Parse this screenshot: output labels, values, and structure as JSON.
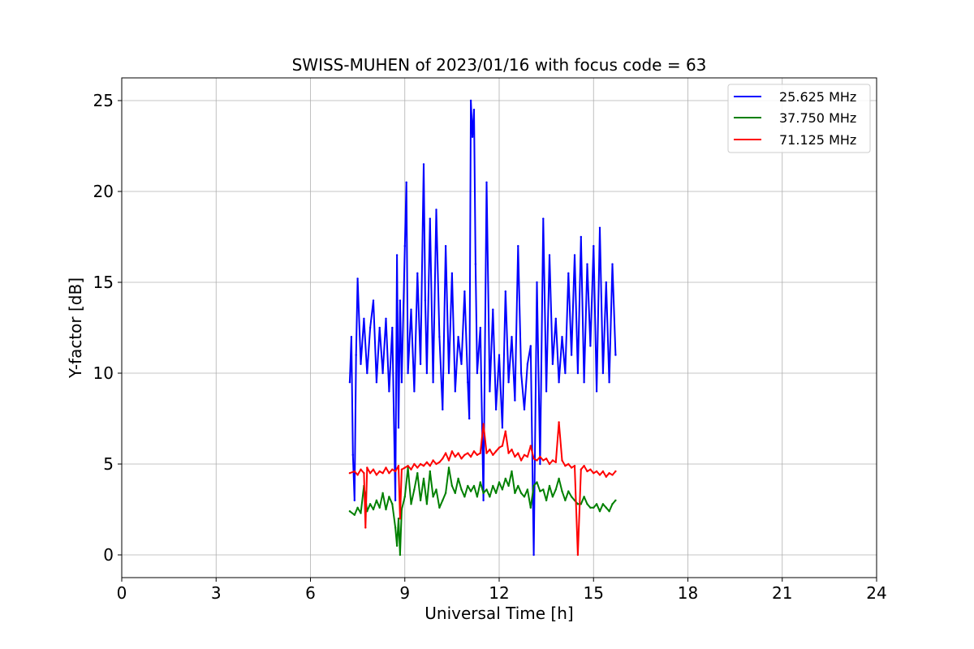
{
  "chart_data": {
    "type": "line",
    "title": "SWISS-MUHEN of 2023/01/16 with focus code = 63",
    "xlabel": "Universal Time [h]",
    "ylabel": "Y-factor [dB]",
    "xlim": [
      0,
      24
    ],
    "ylim": [
      -1.25,
      26.25
    ],
    "xticks": [
      0,
      3,
      6,
      9,
      12,
      15,
      18,
      21,
      24
    ],
    "yticks": [
      0,
      5,
      10,
      15,
      20,
      25
    ],
    "grid": true,
    "legend_position": "top-right",
    "series": [
      {
        "name": "25.625 MHz",
        "color": "#0000ff",
        "x": [
          7.25,
          7.3,
          7.35,
          7.4,
          7.45,
          7.5,
          7.6,
          7.7,
          7.8,
          7.9,
          8.0,
          8.1,
          8.2,
          8.3,
          8.4,
          8.5,
          8.6,
          8.7,
          8.75,
          8.8,
          8.85,
          8.9,
          9.0,
          9.05,
          9.1,
          9.2,
          9.3,
          9.4,
          9.5,
          9.6,
          9.65,
          9.7,
          9.8,
          9.9,
          10.0,
          10.1,
          10.2,
          10.3,
          10.4,
          10.5,
          10.6,
          10.7,
          10.8,
          10.9,
          11.0,
          11.05,
          11.1,
          11.15,
          11.2,
          11.25,
          11.3,
          11.4,
          11.5,
          11.6,
          11.7,
          11.8,
          11.9,
          12.0,
          12.1,
          12.2,
          12.3,
          12.4,
          12.5,
          12.6,
          12.7,
          12.8,
          12.9,
          13.0,
          13.1,
          13.2,
          13.3,
          13.4,
          13.5,
          13.6,
          13.7,
          13.8,
          13.9,
          14.0,
          14.1,
          14.2,
          14.3,
          14.4,
          14.5,
          14.6,
          14.7,
          14.8,
          14.9,
          15.0,
          15.1,
          15.2,
          15.3,
          15.4,
          15.5,
          15.6,
          15.7
        ],
        "values": [
          9.5,
          12.0,
          5.5,
          3.0,
          11.0,
          15.2,
          10.5,
          13.0,
          10.0,
          12.5,
          14.0,
          9.5,
          12.5,
          10.0,
          13.0,
          9.0,
          12.5,
          3.0,
          16.5,
          7.0,
          14.0,
          9.5,
          17.0,
          20.5,
          10.0,
          13.5,
          9.0,
          15.5,
          10.5,
          21.5,
          14.0,
          10.0,
          18.5,
          9.5,
          19.0,
          12.0,
          8.0,
          17.0,
          10.0,
          15.5,
          9.0,
          12.0,
          10.5,
          14.5,
          9.5,
          7.5,
          25.0,
          23.0,
          24.5,
          16.0,
          10.0,
          12.5,
          3.0,
          20.5,
          9.0,
          13.5,
          8.0,
          11.0,
          7.0,
          14.5,
          9.5,
          12.0,
          8.5,
          17.0,
          10.0,
          8.0,
          10.5,
          11.5,
          0.0,
          15.0,
          5.0,
          18.5,
          9.0,
          16.5,
          10.5,
          13.0,
          9.5,
          12.0,
          10.0,
          15.5,
          11.0,
          16.5,
          10.0,
          17.5,
          9.5,
          16.0,
          11.5,
          17.0,
          9.0,
          18.0,
          10.0,
          15.0,
          9.5,
          16.0,
          11.0
        ]
      },
      {
        "name": "37.750 MHz",
        "color": "#008000",
        "x": [
          7.25,
          7.4,
          7.5,
          7.6,
          7.7,
          7.8,
          7.9,
          8.0,
          8.1,
          8.2,
          8.3,
          8.4,
          8.5,
          8.6,
          8.7,
          8.75,
          8.8,
          8.85,
          8.9,
          9.0,
          9.1,
          9.2,
          9.3,
          9.4,
          9.5,
          9.6,
          9.7,
          9.8,
          9.9,
          10.0,
          10.1,
          10.2,
          10.3,
          10.4,
          10.5,
          10.6,
          10.7,
          10.8,
          10.9,
          11.0,
          11.1,
          11.2,
          11.3,
          11.4,
          11.5,
          11.6,
          11.7,
          11.8,
          11.9,
          12.0,
          12.1,
          12.2,
          12.3,
          12.4,
          12.5,
          12.6,
          12.7,
          12.8,
          12.9,
          13.0,
          13.1,
          13.2,
          13.3,
          13.4,
          13.5,
          13.6,
          13.7,
          13.8,
          13.9,
          14.0,
          14.1,
          14.2,
          14.3,
          14.4,
          14.5,
          14.6,
          14.7,
          14.8,
          14.9,
          15.0,
          15.1,
          15.2,
          15.3,
          15.4,
          15.5,
          15.6,
          15.7
        ],
        "values": [
          2.4,
          2.2,
          2.6,
          2.3,
          3.8,
          2.4,
          2.8,
          2.5,
          3.0,
          2.6,
          3.4,
          2.5,
          3.2,
          2.8,
          1.5,
          0.5,
          2.0,
          0.0,
          2.5,
          3.2,
          4.8,
          2.8,
          3.6,
          4.5,
          3.0,
          4.2,
          2.8,
          4.6,
          3.2,
          3.6,
          2.6,
          3.0,
          3.4,
          4.8,
          3.8,
          3.4,
          4.2,
          3.6,
          3.2,
          3.8,
          3.5,
          3.8,
          3.2,
          4.0,
          3.4,
          3.6,
          3.2,
          3.8,
          3.4,
          4.0,
          3.6,
          4.2,
          3.8,
          4.6,
          3.4,
          3.8,
          3.4,
          3.2,
          3.6,
          2.6,
          3.8,
          4.0,
          3.5,
          3.6,
          3.0,
          3.8,
          3.2,
          3.6,
          4.2,
          3.5,
          3.0,
          3.5,
          3.2,
          3.0,
          2.8,
          2.8,
          3.2,
          2.8,
          2.6,
          2.6,
          2.8,
          2.4,
          2.8,
          2.6,
          2.4,
          2.8,
          3.0
        ]
      },
      {
        "name": "71.125 MHz",
        "color": "#ff0000",
        "x": [
          7.25,
          7.4,
          7.5,
          7.6,
          7.7,
          7.75,
          7.8,
          7.9,
          8.0,
          8.1,
          8.2,
          8.3,
          8.4,
          8.5,
          8.6,
          8.7,
          8.8,
          8.85,
          8.9,
          9.0,
          9.1,
          9.2,
          9.3,
          9.4,
          9.5,
          9.6,
          9.7,
          9.8,
          9.9,
          10.0,
          10.1,
          10.2,
          10.3,
          10.4,
          10.5,
          10.6,
          10.7,
          10.8,
          10.9,
          11.0,
          11.1,
          11.2,
          11.3,
          11.4,
          11.5,
          11.6,
          11.7,
          11.8,
          11.9,
          12.0,
          12.1,
          12.2,
          12.3,
          12.4,
          12.5,
          12.6,
          12.7,
          12.8,
          12.9,
          13.0,
          13.1,
          13.2,
          13.3,
          13.4,
          13.5,
          13.6,
          13.7,
          13.8,
          13.9,
          14.0,
          14.1,
          14.2,
          14.3,
          14.4,
          14.5,
          14.6,
          14.7,
          14.8,
          14.9,
          15.0,
          15.1,
          15.2,
          15.3,
          15.4,
          15.5,
          15.6,
          15.7
        ],
        "values": [
          4.5,
          4.6,
          4.4,
          4.7,
          4.5,
          1.5,
          4.8,
          4.5,
          4.7,
          4.4,
          4.6,
          4.5,
          4.8,
          4.5,
          4.7,
          4.6,
          4.9,
          2.0,
          4.7,
          4.8,
          4.9,
          4.7,
          5.0,
          4.8,
          5.0,
          4.9,
          5.1,
          4.9,
          5.2,
          5.0,
          5.1,
          5.3,
          5.6,
          5.2,
          5.7,
          5.4,
          5.6,
          5.3,
          5.5,
          5.6,
          5.4,
          5.7,
          5.5,
          5.6,
          7.2,
          5.6,
          5.8,
          5.5,
          5.7,
          5.9,
          6.0,
          6.8,
          5.6,
          5.8,
          5.4,
          5.6,
          5.2,
          5.5,
          5.4,
          6.0,
          5.3,
          5.2,
          5.4,
          5.2,
          5.3,
          5.0,
          5.2,
          5.1,
          7.3,
          5.2,
          4.9,
          5.0,
          4.8,
          4.9,
          0.0,
          4.7,
          4.9,
          4.6,
          4.7,
          4.5,
          4.6,
          4.4,
          4.6,
          4.3,
          4.5,
          4.4,
          4.6
        ]
      }
    ]
  }
}
